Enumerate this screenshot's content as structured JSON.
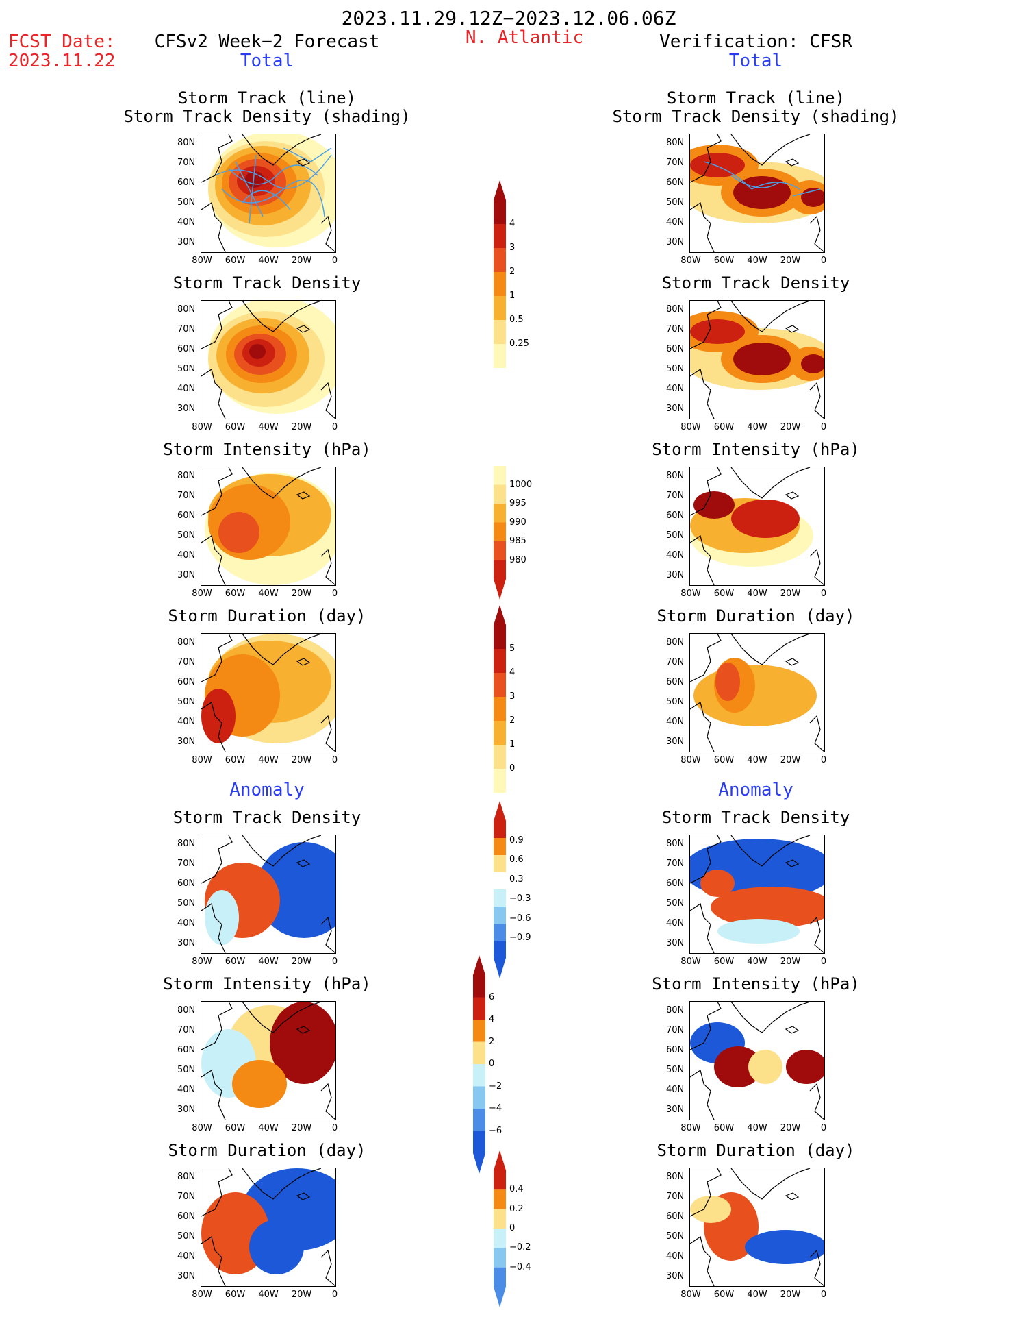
{
  "header": {
    "period": "2023.11.29.12Z−2023.12.06.06Z",
    "fcst_label": "FCST Date:",
    "fcst_date": "2023.11.22",
    "region": "N. Atlantic",
    "left_title": "CFSv2 Week−2 Forecast",
    "right_title": "Verification: CFSR",
    "left_total": "Total",
    "right_total": "Total",
    "left_anomaly": "Anomaly",
    "right_anomaly": "Anomaly"
  },
  "panel_titles": {
    "track1": "Storm Track (line)",
    "track2": "Storm Track Density (shading)",
    "density": "Storm Track Density",
    "intensity": "Storm Intensity (hPa)",
    "duration": "Storm Duration (day)"
  },
  "axes": {
    "lat_ticks": [
      "80N",
      "70N",
      "60N",
      "50N",
      "40N",
      "30N"
    ],
    "lon_ticks": [
      "80W",
      "60W",
      "40W",
      "20W",
      "0"
    ]
  },
  "colors": {
    "warm": [
      "#fff8b8",
      "#fde08a",
      "#f8b030",
      "#f48a14",
      "#e8501e",
      "#cc2010",
      "#a00c0c"
    ],
    "cool": [
      "#c8f0f8",
      "#88c8f0",
      "#4a8ce6",
      "#1c58d8"
    ],
    "track_line": "#4aa0e6"
  },
  "chart_data": [
    {
      "type": "heatmap",
      "panel": "left-total-track",
      "title": "Storm Track (line) / Storm Track Density (shading)",
      "colorbar_levels": [
        0.25,
        0.5,
        1,
        2,
        3,
        4
      ]
    },
    {
      "type": "heatmap",
      "panel": "right-total-track",
      "title": "Storm Track (line) / Storm Track Density (shading)",
      "colorbar_levels": [
        0.25,
        0.5,
        1,
        2,
        3,
        4
      ]
    },
    {
      "type": "heatmap",
      "panel": "left-total-density",
      "title": "Storm Track Density",
      "colorbar_levels": [
        0.25,
        0.5,
        1,
        2,
        3,
        4
      ]
    },
    {
      "type": "heatmap",
      "panel": "right-total-density",
      "title": "Storm Track Density",
      "colorbar_levels": [
        0.25,
        0.5,
        1,
        2,
        3,
        4
      ]
    },
    {
      "type": "heatmap",
      "panel": "left-total-intensity",
      "title": "Storm Intensity (hPa)",
      "colorbar_levels": [
        1000,
        995,
        990,
        985,
        980
      ]
    },
    {
      "type": "heatmap",
      "panel": "right-total-intensity",
      "title": "Storm Intensity (hPa)",
      "colorbar_levels": [
        1000,
        995,
        990,
        985,
        980
      ]
    },
    {
      "type": "heatmap",
      "panel": "left-total-duration",
      "title": "Storm Duration (day)",
      "colorbar_levels": [
        0,
        1,
        2,
        3,
        4,
        5
      ]
    },
    {
      "type": "heatmap",
      "panel": "right-total-duration",
      "title": "Storm Duration (day)",
      "colorbar_levels": [
        0,
        1,
        2,
        3,
        4,
        5
      ]
    },
    {
      "type": "heatmap",
      "panel": "left-anom-density",
      "title": "Storm Track Density",
      "colorbar_levels": [
        -0.9,
        -0.6,
        -0.3,
        0.3,
        0.6,
        0.9
      ]
    },
    {
      "type": "heatmap",
      "panel": "right-anom-density",
      "title": "Storm Track Density",
      "colorbar_levels": [
        -0.9,
        -0.6,
        -0.3,
        0.3,
        0.6,
        0.9
      ]
    },
    {
      "type": "heatmap",
      "panel": "left-anom-intensity",
      "title": "Storm Intensity (hPa)",
      "colorbar_levels": [
        -6,
        -4,
        -2,
        0,
        2,
        4,
        6
      ]
    },
    {
      "type": "heatmap",
      "panel": "right-anom-intensity",
      "title": "Storm Intensity (hPa)",
      "colorbar_levels": [
        -6,
        -4,
        -2,
        0,
        2,
        4,
        6
      ]
    },
    {
      "type": "heatmap",
      "panel": "left-anom-duration",
      "title": "Storm Duration (day)",
      "colorbar_levels": [
        -0.4,
        -0.2,
        0,
        0.2,
        0.4
      ]
    },
    {
      "type": "heatmap",
      "panel": "right-anom-duration",
      "title": "Storm Duration (day)",
      "colorbar_levels": [
        -0.4,
        -0.2,
        0,
        0.2,
        0.4
      ]
    }
  ],
  "colorbars": [
    {
      "name": "density-colorbar",
      "labels": [
        "4",
        "3",
        "2",
        "1",
        "0.5",
        "0.25"
      ]
    },
    {
      "name": "intensity-colorbar",
      "labels": [
        "1000",
        "995",
        "990",
        "985",
        "980"
      ]
    },
    {
      "name": "duration-colorbar",
      "labels": [
        "5",
        "4",
        "3",
        "2",
        "1",
        "0"
      ]
    },
    {
      "name": "anom-density-colorbar",
      "labels": [
        "0.9",
        "0.6",
        "0.3",
        "−0.3",
        "−0.6",
        "−0.9"
      ]
    },
    {
      "name": "anom-intensity-colorbar",
      "labels": [
        "6",
        "4",
        "2",
        "0",
        "−2",
        "−4",
        "−6"
      ]
    },
    {
      "name": "anom-duration-colorbar",
      "labels": [
        "0.4",
        "0.2",
        "0",
        "−0.2",
        "−0.4"
      ]
    }
  ]
}
